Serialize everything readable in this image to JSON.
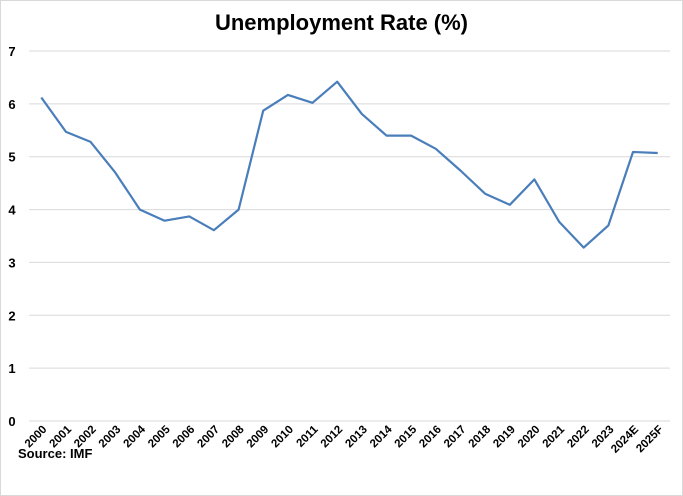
{
  "chart_data": {
    "type": "line",
    "title": "Unemployment Rate (%)",
    "xlabel": "",
    "ylabel": "",
    "categories": [
      "2000",
      "2001",
      "2002",
      "2003",
      "2004",
      "2005",
      "2006",
      "2007",
      "2008",
      "2009",
      "2010",
      "2011",
      "2012",
      "2013",
      "2014",
      "2015",
      "2016",
      "2017",
      "2018",
      "2019",
      "2020",
      "2021",
      "2022",
      "2023",
      "2024E",
      "2025F"
    ],
    "series": [
      {
        "name": "Unemployment Rate (%)",
        "color": "#4a7ebb",
        "values": [
          6.12,
          5.47,
          5.28,
          4.7,
          4.0,
          3.79,
          3.87,
          3.61,
          4.0,
          5.87,
          6.17,
          6.02,
          6.42,
          5.81,
          5.4,
          5.4,
          5.15,
          4.74,
          4.3,
          4.09,
          4.57,
          3.77,
          3.28,
          3.7,
          5.09,
          5.07
        ]
      }
    ],
    "ylim": [
      0,
      7
    ],
    "yticks": [
      0,
      1,
      2,
      3,
      4,
      5,
      6,
      7
    ],
    "grid": true,
    "legend": "none",
    "source": "Source: IMF"
  }
}
